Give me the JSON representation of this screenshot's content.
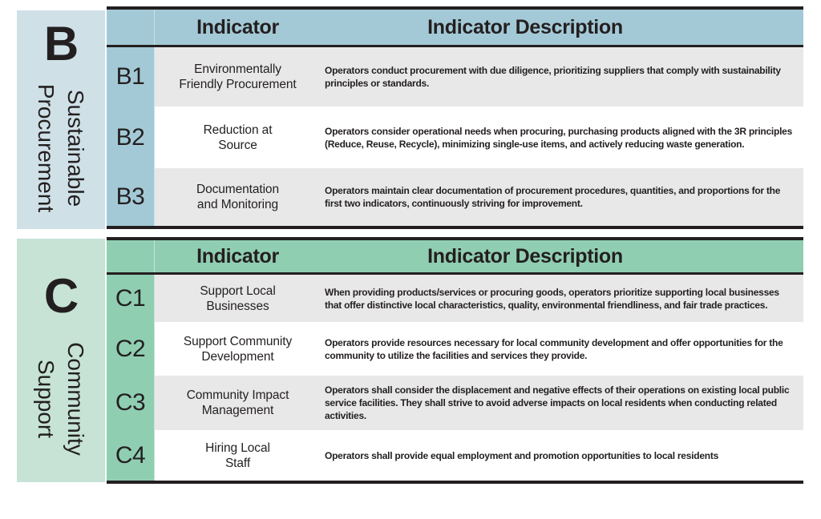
{
  "colors": {
    "section_b_accent": "#a4c9d6",
    "section_b_sidebar": "#cfe0e7",
    "section_c_accent": "#90ceb2",
    "section_c_sidebar": "#c6e3d6",
    "row_gray": "#e8e8e8",
    "row_white": "#ffffff",
    "border_dark": "#231f20",
    "text_dark": "#231f20"
  },
  "sections": [
    {
      "letter": "B",
      "category_line1": "Sustainable",
      "category_line2": "Procurement",
      "header": {
        "indicator": "Indicator",
        "description": "Indicator Description"
      },
      "rows": [
        {
          "code": "B1",
          "name": "Environmentally\nFriendly Procurement",
          "description": "Operators conduct procurement with due diligence, prioritizing suppliers that comply with sustainability principles or standards."
        },
        {
          "code": "B2",
          "name": "Reduction at\nSource",
          "description": "Operators consider operational needs when procuring, purchasing products aligned with the 3R principles (Reduce, Reuse, Recycle), minimizing single-use items, and actively reducing waste generation."
        },
        {
          "code": "B3",
          "name": "Documentation\nand Monitoring",
          "description": "Operators maintain clear documentation of procurement procedures, quantities, and proportions for the first two indicators, continuously striving for improvement."
        }
      ]
    },
    {
      "letter": "C",
      "category_line1": "Community",
      "category_line2": "Support",
      "header": {
        "indicator": "Indicator",
        "description": "Indicator Description"
      },
      "rows": [
        {
          "code": "C1",
          "name": "Support Local\nBusinesses",
          "description": "When providing products/services or procuring goods, operators prioritize supporting local businesses that offer distinctive local characteristics, quality, environmental friendliness, and fair trade practices."
        },
        {
          "code": "C2",
          "name": "Support Community\nDevelopment",
          "description": "Operators provide resources necessary for local community development and offer opportunities for the community to utilize the facilities and services they provide."
        },
        {
          "code": "C3",
          "name": "Community Impact\nManagement",
          "description": "Operators shall consider the displacement and negative effects of their operations on existing local public service facilities. They shall strive to avoid adverse impacts on local residents when conducting related activities."
        },
        {
          "code": "C4",
          "name": "Hiring Local\nStaff",
          "description": "Operators shall provide equal employment and promotion opportunities to local residents"
        }
      ]
    }
  ]
}
